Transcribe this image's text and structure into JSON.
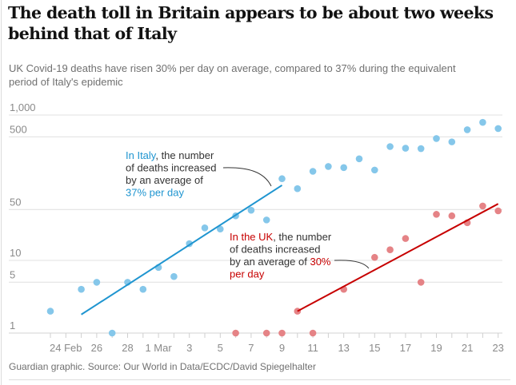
{
  "title": "The death toll in Britain appears to be about two weeks behind that of Italy",
  "subtitle": "UK Covid-19 deaths have risen 30% per day on average, compared to 37% during the equivalent period of Italy's epidemic",
  "footer": "Guardian graphic. Source: Our World in Data/ECDC/David Spiegelhalter",
  "colors": {
    "italy_points": "#85c7ea",
    "italy_line": "#1f95d0",
    "uk_points": "#e58386",
    "uk_line": "#c70000",
    "grid": "#e6e6e6"
  },
  "chart_data": {
    "type": "scatter",
    "title": "The death toll in Britain appears to be about two weeks behind that of Italy",
    "subtitle": "UK Covid-19 deaths have risen 30% per day on average, compared to 37% during the equivalent period of Italy's epidemic",
    "xlabel": "",
    "ylabel": "",
    "yscale": "log",
    "ylim": [
      1,
      1000
    ],
    "xlim": [
      "2020-02-23",
      "2020-03-23"
    ],
    "grid": true,
    "yticks": [
      {
        "value": 1,
        "label": "1"
      },
      {
        "value": 5,
        "label": "5"
      },
      {
        "value": 10,
        "label": "10"
      },
      {
        "value": 50,
        "label": "50"
      },
      {
        "value": 500,
        "label": "500"
      },
      {
        "value": 1000,
        "label": "1,000"
      }
    ],
    "xticks": [
      {
        "day": 1,
        "label": "24 Feb"
      },
      {
        "day": 3,
        "label": "26"
      },
      {
        "day": 5,
        "label": "28"
      },
      {
        "day": 7,
        "label": "1 Mar"
      },
      {
        "day": 9,
        "label": "3"
      },
      {
        "day": 11,
        "label": "5"
      },
      {
        "day": 13,
        "label": "7"
      },
      {
        "day": 15,
        "label": "9"
      },
      {
        "day": 17,
        "label": "11"
      },
      {
        "day": 19,
        "label": "13"
      },
      {
        "day": 21,
        "label": "15"
      },
      {
        "day": 23,
        "label": "17"
      },
      {
        "day": 25,
        "label": "19"
      },
      {
        "day": 27,
        "label": "21"
      },
      {
        "day": 29,
        "label": "23"
      }
    ],
    "x_day0": "2020-02-23",
    "x_day_count": 30,
    "series": [
      {
        "name": "Italy",
        "kind": "points",
        "points": [
          {
            "day": 0,
            "date": "23 Feb",
            "value": 2
          },
          {
            "day": 2,
            "date": "25 Feb",
            "value": 4
          },
          {
            "day": 3,
            "date": "26 Feb",
            "value": 5
          },
          {
            "day": 4,
            "date": "27 Feb",
            "value": 1
          },
          {
            "day": 5,
            "date": "28 Feb",
            "value": 5
          },
          {
            "day": 6,
            "date": "29 Feb",
            "value": 4
          },
          {
            "day": 7,
            "date": "1 Mar",
            "value": 8
          },
          {
            "day": 8,
            "date": "2 Mar",
            "value": 6
          },
          {
            "day": 9,
            "date": "3 Mar",
            "value": 17
          },
          {
            "day": 10,
            "date": "4 Mar",
            "value": 28
          },
          {
            "day": 11,
            "date": "5 Mar",
            "value": 27
          },
          {
            "day": 12,
            "date": "6 Mar",
            "value": 41
          },
          {
            "day": 13,
            "date": "7 Mar",
            "value": 49
          },
          {
            "day": 14,
            "date": "8 Mar",
            "value": 36
          },
          {
            "day": 15,
            "date": "9 Mar",
            "value": 133
          },
          {
            "day": 16,
            "date": "10 Mar",
            "value": 97
          },
          {
            "day": 17,
            "date": "11 Mar",
            "value": 168
          },
          {
            "day": 18,
            "date": "12 Mar",
            "value": 196
          },
          {
            "day": 19,
            "date": "13 Mar",
            "value": 189
          },
          {
            "day": 20,
            "date": "14 Mar",
            "value": 250
          },
          {
            "day": 21,
            "date": "15 Mar",
            "value": 175
          },
          {
            "day": 22,
            "date": "16 Mar",
            "value": 368
          },
          {
            "day": 23,
            "date": "17 Mar",
            "value": 349
          },
          {
            "day": 24,
            "date": "18 Mar",
            "value": 345
          },
          {
            "day": 25,
            "date": "19 Mar",
            "value": 475
          },
          {
            "day": 26,
            "date": "20 Mar",
            "value": 427
          },
          {
            "day": 27,
            "date": "21 Mar",
            "value": 627
          },
          {
            "day": 28,
            "date": "22 Mar",
            "value": 793
          },
          {
            "day": 29,
            "date": "23 Mar",
            "value": 651
          }
        ]
      },
      {
        "name": "Italy trend (37% per day)",
        "kind": "line",
        "points": [
          {
            "day": 2,
            "value": 1.8
          },
          {
            "day": 15,
            "value": 108
          }
        ]
      },
      {
        "name": "UK",
        "kind": "points",
        "points": [
          {
            "day": 12,
            "date": "6 Mar",
            "value": 1
          },
          {
            "day": 14,
            "date": "8 Mar",
            "value": 1
          },
          {
            "day": 15,
            "date": "9 Mar",
            "value": 1
          },
          {
            "day": 16,
            "date": "10 Mar",
            "value": 2
          },
          {
            "day": 17,
            "date": "11 Mar",
            "value": 1
          },
          {
            "day": 19,
            "date": "13 Mar",
            "value": 4
          },
          {
            "day": 21,
            "date": "15 Mar",
            "value": 11
          },
          {
            "day": 22,
            "date": "16 Mar",
            "value": 14
          },
          {
            "day": 23,
            "date": "17 Mar",
            "value": 20
          },
          {
            "day": 24,
            "date": "18 Mar",
            "value": 5
          },
          {
            "day": 25,
            "date": "19 Mar",
            "value": 43
          },
          {
            "day": 26,
            "date": "20 Mar",
            "value": 41
          },
          {
            "day": 27,
            "date": "21 Mar",
            "value": 33
          },
          {
            "day": 28,
            "date": "22 Mar",
            "value": 56
          },
          {
            "day": 29,
            "date": "23 Mar",
            "value": 48
          }
        ]
      },
      {
        "name": "UK trend (30% per day)",
        "kind": "line",
        "points": [
          {
            "day": 16,
            "value": 2
          },
          {
            "day": 29,
            "value": 60
          }
        ]
      }
    ],
    "annotations": [
      {
        "series": "Italy",
        "lines": [
          [
            {
              "text": "In Italy",
              "accent": true
            },
            {
              "text": ", the number",
              "accent": false
            }
          ],
          [
            {
              "text": "of deaths increased",
              "accent": false
            }
          ],
          [
            {
              "text": "by an average of",
              "accent": false
            }
          ],
          [
            {
              "text": "37% per day",
              "accent": true
            }
          ]
        ]
      },
      {
        "series": "UK",
        "lines": [
          [
            {
              "text": "In the UK",
              "accent": true
            },
            {
              "text": ", the number",
              "accent": false
            }
          ],
          [
            {
              "text": "of deaths increased",
              "accent": false
            }
          ],
          [
            {
              "text": "by an average of ",
              "accent": false
            },
            {
              "text": "30%",
              "accent": true
            }
          ],
          [
            {
              "text": "per day",
              "accent": true
            }
          ]
        ]
      }
    ]
  }
}
